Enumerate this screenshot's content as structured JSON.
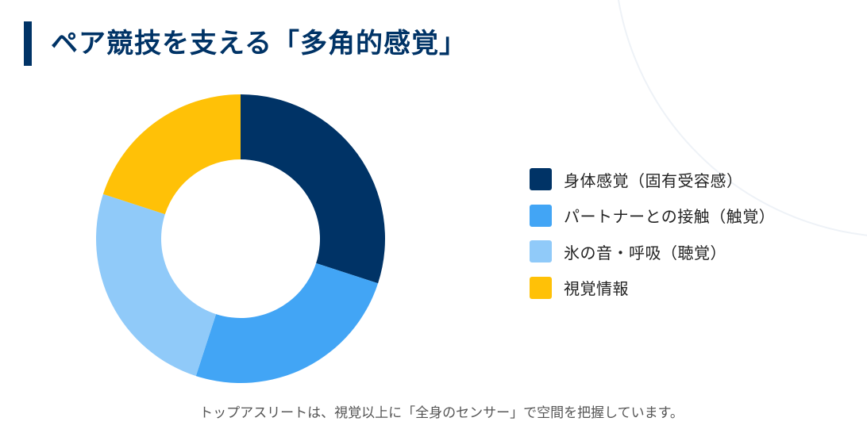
{
  "title": "ペア競技を支える「多角的感覚」",
  "caption": "トップアスリートは、視覚以上に「全身のセンサー」で空間を把握しています。",
  "colors": {
    "title": "#003366",
    "accent_bar": "#003366"
  },
  "chart_data": {
    "type": "pie",
    "variant": "donut",
    "title": "ペア競技を支える「多角的感覚」",
    "categories": [
      "身体感覚（固有受容感）",
      "パートナーとの接触（触覚）",
      "氷の音・呼吸（聴覚）",
      "視覚情報"
    ],
    "values": [
      30,
      25,
      25,
      20
    ],
    "colors": [
      "#003366",
      "#42A5F5",
      "#90CAF9",
      "#FFC107"
    ],
    "start_angle": "top (12 o'clock), clockwise",
    "legend_position": "right"
  },
  "legend": {
    "items": [
      {
        "label": "身体感覚（固有受容感）",
        "color": "#003366"
      },
      {
        "label": "パートナーとの接触（触覚）",
        "color": "#42A5F5"
      },
      {
        "label": "氷の音・呼吸（聴覚）",
        "color": "#90CAF9"
      },
      {
        "label": "視覚情報",
        "color": "#FFC107"
      }
    ]
  }
}
